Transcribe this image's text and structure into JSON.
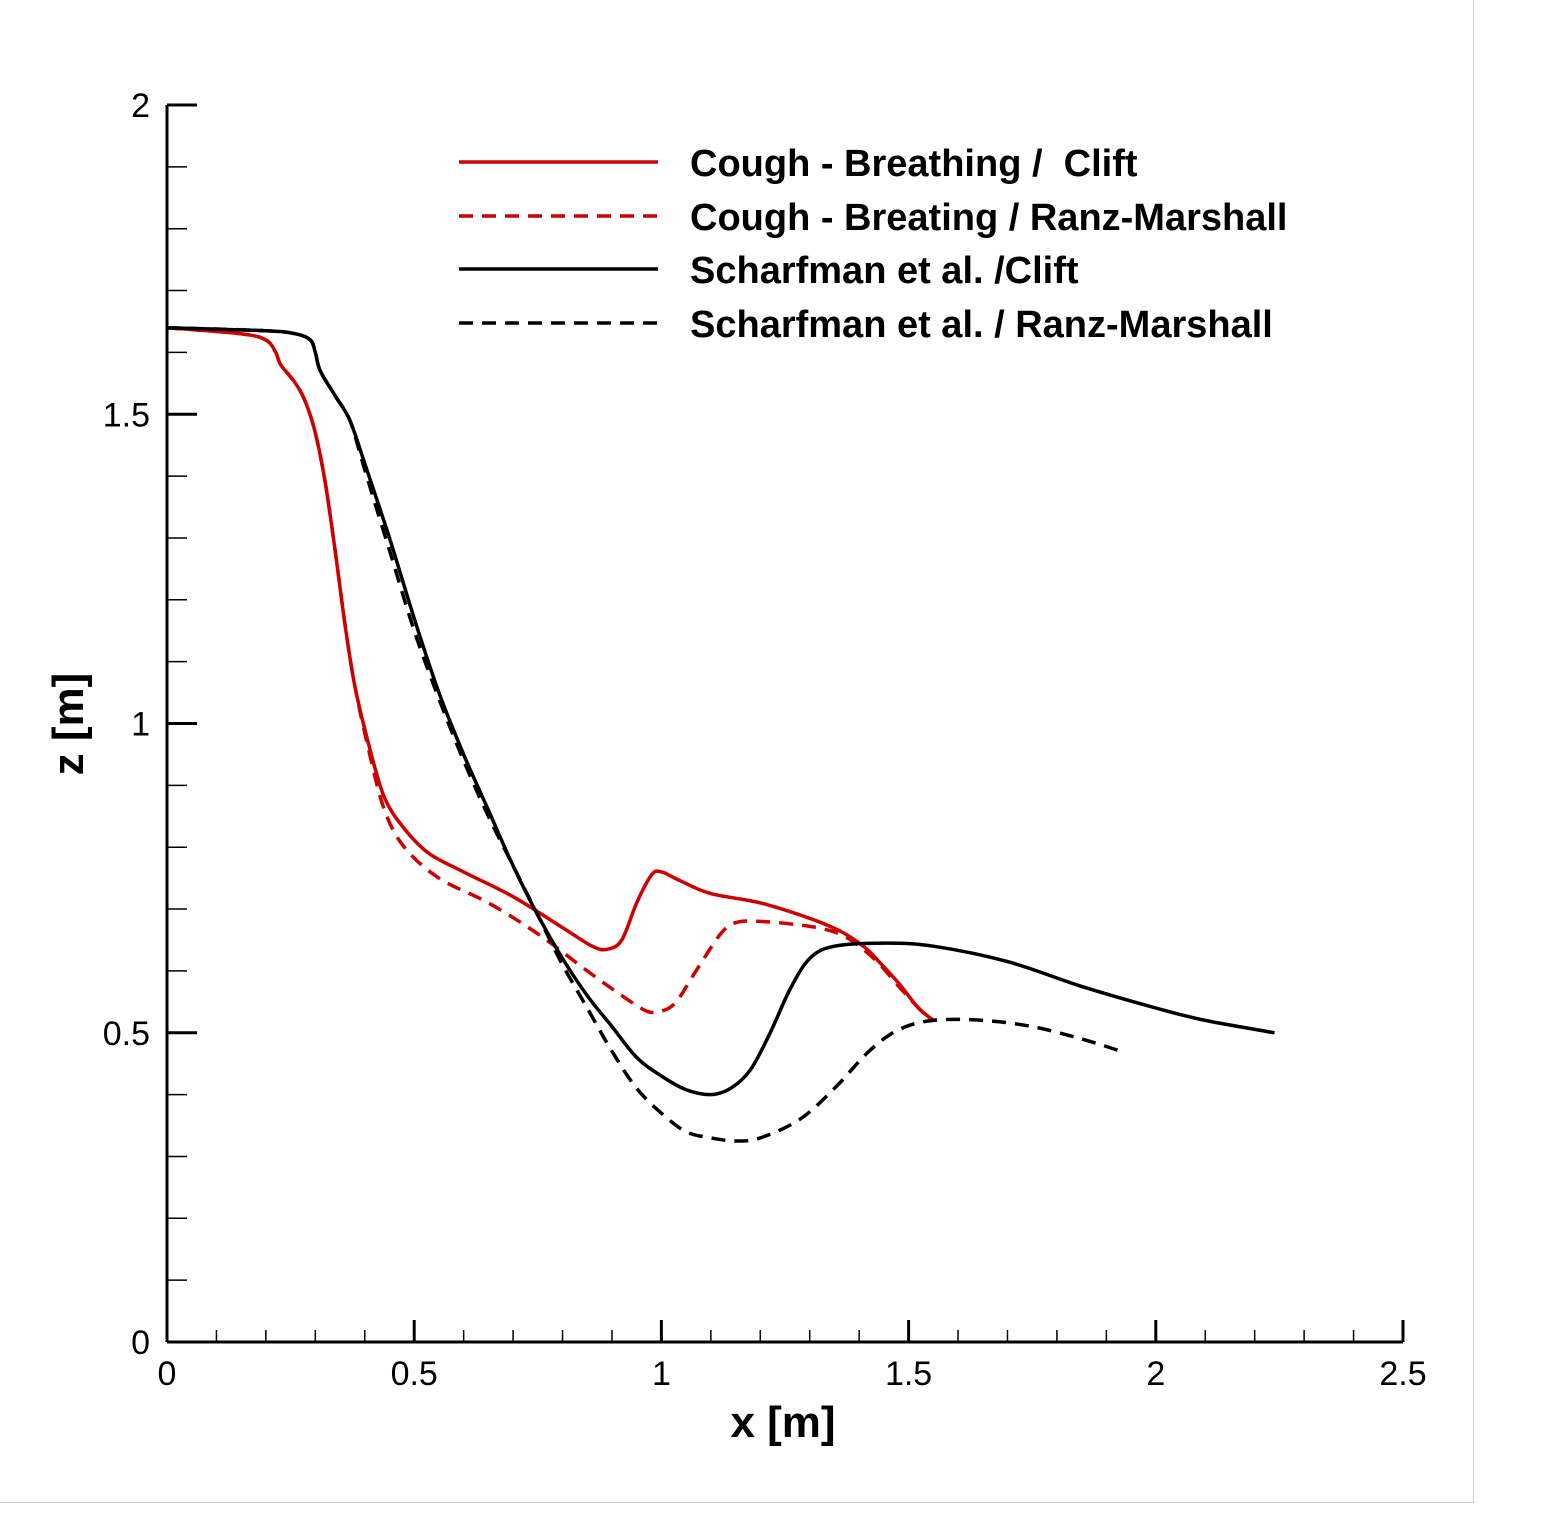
{
  "chart_data": {
    "type": "line",
    "title": "",
    "xlabel": "x [m]",
    "ylabel": "z [m]",
    "xlim": [
      0,
      2.5
    ],
    "ylim": [
      0,
      2
    ],
    "xticks": [
      "0",
      "0.5",
      "1",
      "1.5",
      "2",
      "2.5"
    ],
    "yticks": [
      "0",
      "0.5",
      "1",
      "1.5",
      "2"
    ],
    "grid": false,
    "legend_position": "top-right",
    "series": [
      {
        "name": "Cough - Breathing /  Clift",
        "color": "#cc0000",
        "dash": "solid",
        "points": [
          [
            0,
            1.64
          ],
          [
            0.15,
            1.63
          ],
          [
            0.2,
            1.62
          ],
          [
            0.22,
            1.6
          ],
          [
            0.23,
            1.58
          ],
          [
            0.26,
            1.55
          ],
          [
            0.28,
            1.52
          ],
          [
            0.3,
            1.47
          ],
          [
            0.32,
            1.39
          ],
          [
            0.34,
            1.28
          ],
          [
            0.36,
            1.16
          ],
          [
            0.38,
            1.06
          ],
          [
            0.41,
            0.96
          ],
          [
            0.44,
            0.88
          ],
          [
            0.48,
            0.83
          ],
          [
            0.53,
            0.79
          ],
          [
            0.6,
            0.76
          ],
          [
            0.7,
            0.72
          ],
          [
            0.8,
            0.67
          ],
          [
            0.86,
            0.64
          ],
          [
            0.89,
            0.635
          ],
          [
            0.92,
            0.65
          ],
          [
            0.95,
            0.71
          ],
          [
            0.98,
            0.755
          ],
          [
            1.0,
            0.76
          ],
          [
            1.04,
            0.745
          ],
          [
            1.1,
            0.725
          ],
          [
            1.2,
            0.71
          ],
          [
            1.3,
            0.685
          ],
          [
            1.36,
            0.665
          ],
          [
            1.4,
            0.645
          ],
          [
            1.42,
            0.632
          ],
          [
            1.44,
            0.615
          ],
          [
            1.48,
            0.58
          ],
          [
            1.52,
            0.54
          ],
          [
            1.55,
            0.52
          ]
        ]
      },
      {
        "name": "Cough - Breating / Ranz-Marshall",
        "color": "#cc0000",
        "dash": "dashed",
        "points": [
          [
            0,
            1.64
          ],
          [
            0.15,
            1.63
          ],
          [
            0.2,
            1.62
          ],
          [
            0.22,
            1.6
          ],
          [
            0.23,
            1.58
          ],
          [
            0.26,
            1.55
          ],
          [
            0.28,
            1.52
          ],
          [
            0.3,
            1.47
          ],
          [
            0.32,
            1.39
          ],
          [
            0.34,
            1.28
          ],
          [
            0.36,
            1.16
          ],
          [
            0.38,
            1.06
          ],
          [
            0.41,
            0.95
          ],
          [
            0.44,
            0.86
          ],
          [
            0.48,
            0.8
          ],
          [
            0.55,
            0.75
          ],
          [
            0.65,
            0.71
          ],
          [
            0.75,
            0.66
          ],
          [
            0.85,
            0.6
          ],
          [
            0.92,
            0.56
          ],
          [
            0.97,
            0.535
          ],
          [
            1.0,
            0.535
          ],
          [
            1.03,
            0.55
          ],
          [
            1.07,
            0.6
          ],
          [
            1.12,
            0.66
          ],
          [
            1.15,
            0.678
          ],
          [
            1.2,
            0.68
          ],
          [
            1.3,
            0.672
          ],
          [
            1.36,
            0.66
          ],
          [
            1.4,
            0.64
          ],
          [
            1.44,
            0.612
          ],
          [
            1.48,
            0.575
          ],
          [
            1.52,
            0.54
          ],
          [
            1.55,
            0.52
          ]
        ]
      },
      {
        "name": "Scharfman et al. /Clift",
        "color": "#000000",
        "dash": "solid",
        "points": [
          [
            0,
            1.64
          ],
          [
            0.2,
            1.635
          ],
          [
            0.26,
            1.63
          ],
          [
            0.29,
            1.62
          ],
          [
            0.3,
            1.6
          ],
          [
            0.31,
            1.57
          ],
          [
            0.34,
            1.53
          ],
          [
            0.37,
            1.49
          ],
          [
            0.4,
            1.42
          ],
          [
            0.45,
            1.3
          ],
          [
            0.5,
            1.17
          ],
          [
            0.55,
            1.05
          ],
          [
            0.6,
            0.95
          ],
          [
            0.65,
            0.86
          ],
          [
            0.7,
            0.77
          ],
          [
            0.75,
            0.69
          ],
          [
            0.8,
            0.62
          ],
          [
            0.85,
            0.56
          ],
          [
            0.9,
            0.51
          ],
          [
            0.95,
            0.46
          ],
          [
            1.0,
            0.43
          ],
          [
            1.05,
            0.408
          ],
          [
            1.1,
            0.4
          ],
          [
            1.14,
            0.41
          ],
          [
            1.18,
            0.44
          ],
          [
            1.22,
            0.5
          ],
          [
            1.26,
            0.57
          ],
          [
            1.3,
            0.62
          ],
          [
            1.35,
            0.64
          ],
          [
            1.45,
            0.645
          ],
          [
            1.55,
            0.64
          ],
          [
            1.7,
            0.615
          ],
          [
            1.85,
            0.575
          ],
          [
            2.0,
            0.54
          ],
          [
            2.1,
            0.52
          ],
          [
            2.24,
            0.5
          ]
        ]
      },
      {
        "name": "Scharfman et al. / Ranz-Marshall",
        "color": "#000000",
        "dash": "dashed",
        "points": [
          [
            0,
            1.64
          ],
          [
            0.2,
            1.635
          ],
          [
            0.26,
            1.63
          ],
          [
            0.29,
            1.62
          ],
          [
            0.3,
            1.6
          ],
          [
            0.31,
            1.57
          ],
          [
            0.34,
            1.53
          ],
          [
            0.37,
            1.49
          ],
          [
            0.4,
            1.41
          ],
          [
            0.45,
            1.28
          ],
          [
            0.5,
            1.15
          ],
          [
            0.55,
            1.04
          ],
          [
            0.6,
            0.94
          ],
          [
            0.65,
            0.85
          ],
          [
            0.7,
            0.77
          ],
          [
            0.75,
            0.69
          ],
          [
            0.8,
            0.61
          ],
          [
            0.85,
            0.54
          ],
          [
            0.9,
            0.47
          ],
          [
            0.95,
            0.41
          ],
          [
            1.0,
            0.37
          ],
          [
            1.05,
            0.34
          ],
          [
            1.1,
            0.33
          ],
          [
            1.15,
            0.325
          ],
          [
            1.2,
            0.33
          ],
          [
            1.28,
            0.36
          ],
          [
            1.35,
            0.41
          ],
          [
            1.42,
            0.47
          ],
          [
            1.48,
            0.505
          ],
          [
            1.55,
            0.52
          ],
          [
            1.65,
            0.52
          ],
          [
            1.75,
            0.51
          ],
          [
            1.85,
            0.49
          ],
          [
            1.93,
            0.47
          ]
        ]
      }
    ]
  }
}
